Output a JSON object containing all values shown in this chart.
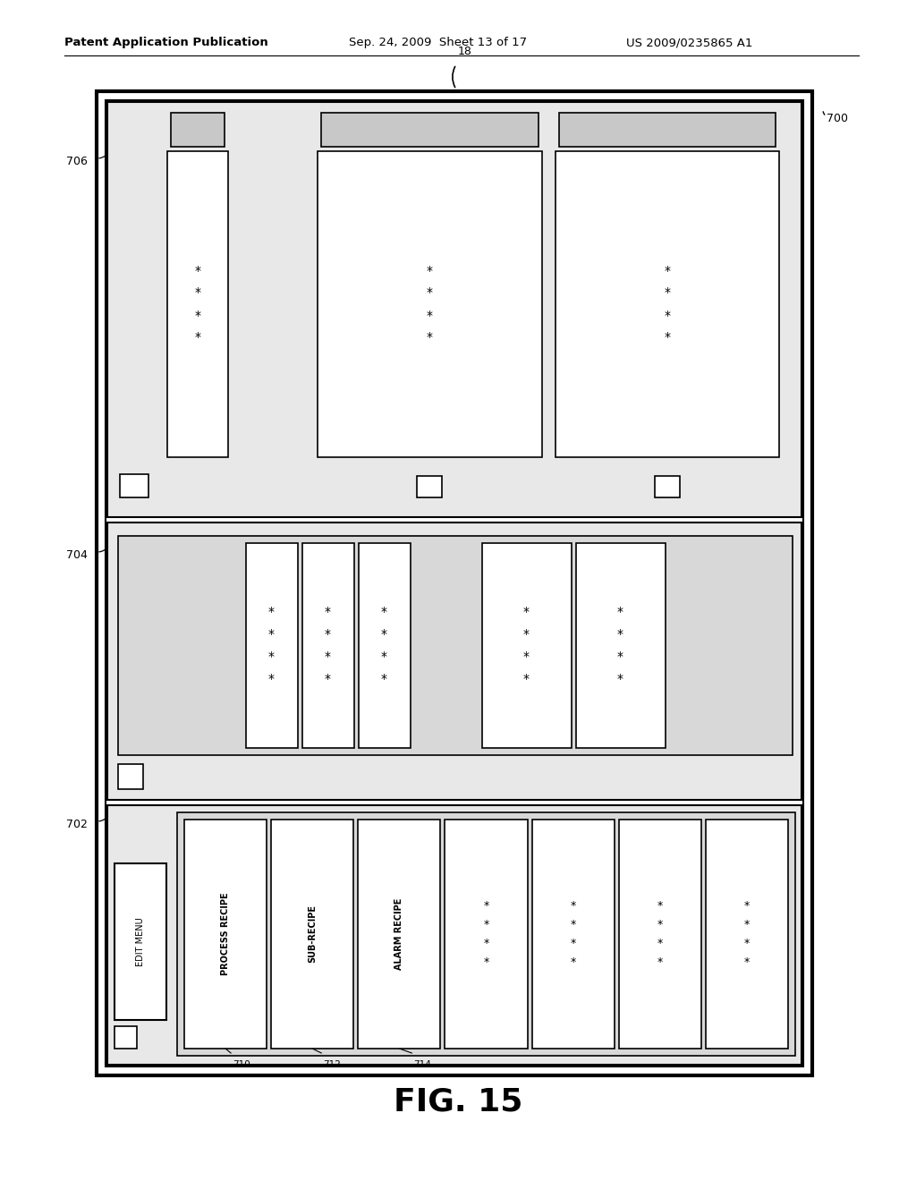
{
  "bg_color": "#ffffff",
  "header_text": "Patent Application Publication",
  "header_date": "Sep. 24, 2009  Sheet 13 of 17",
  "header_patent": "US 2009/0235865 A1",
  "fig_label": "FIG. 15",
  "label_18": "18",
  "label_700": "700",
  "label_702": "702",
  "label_704": "704",
  "label_706": "706",
  "label_710": "710",
  "label_712": "712",
  "label_714": "714",
  "edit_menu_text": "EDIT MENU",
  "process_recipe_text": "PROCESS RECIPE",
  "sub_recipe_text": "SUB-RECIPE",
  "alarm_recipe_text": "ALARM RECIPE",
  "stars_col": "*\n*\n*\n*",
  "stars_2row": "* * * *\n* * * *"
}
